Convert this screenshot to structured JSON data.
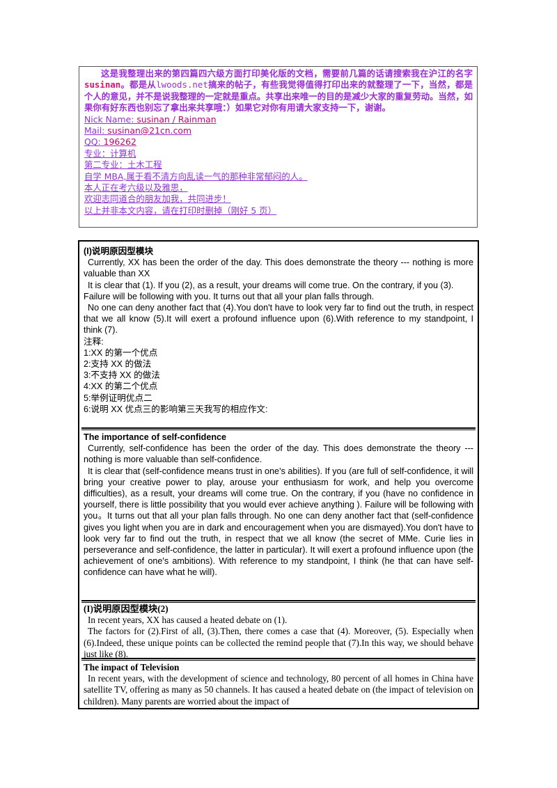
{
  "intro": {
    "para_part1": "这是我整理出来的第四篇四六级方面打印美化版的文档，需要前几篇的话请搜索我在沪江的名字",
    "username": "susinan",
    "para_part2": "。都是从",
    "site": "lwoods.net",
    "para_part3": "搞来的帖子，有些我觉得值得打印出来的就整理了一下，当然，都是个人的意见，并不是说我整理的一定就是重点。共享出来唯一的目的是减少大家的重复劳动。当然，如果你有好东西也别忘了拿出来共享哦：）如果它对你有用请大家支持一下，谢谢。",
    "nick_label": "Nick Name: ",
    "nick_value": "susinan / Rainman",
    "mail_label": "Mail: ",
    "mail_value": "susinan@21cn.com",
    "qq_label": "QQ: ",
    "qq_value": "196262",
    "major": "专业：计算机",
    "second_major": "第二专业：土木工程",
    "mba": "自学 MBA,属于看不清方向乱读一气的那种非常郁闷的人。",
    "exam": "本人正在考六级以及雅思，",
    "welcome": "欢迎志同道合的朋友加我，共同进步！",
    "remove_note": "以上并非本文内容，请在打印时删掉（刚好 5 页）"
  },
  "section1": {
    "heading": "(I)说明原因型模块",
    "p1": "Currently, XX has been the order of the day. This does demonstrate the theory --- nothing is more valuable than XX",
    "p2": "It is clear that (1). If you (2), as a result, your dreams will come true. On the contrary, if you (3).",
    "p3": "Failure will be following with you. It turns out that all your plan falls through.",
    "p4": "No one can deny another fact that (4).You don't have to look very far to find out the truth, in respect that we all know (5).It will exert a profound influence upon (6).With reference to my standpoint, I think (7).",
    "notes_label": "注释:",
    "notes": [
      "1:XX 的第一个优点",
      "2:支持 XX 的做法",
      "3:不支持 XX 的做法",
      "4:XX 的第二个优点",
      "5:举例证明优点二",
      "6:说明 XX 优点三的影响第三天我写的相应作文:"
    ]
  },
  "section2": {
    "heading": "The importance of self-confidence",
    "p1": "Currently, self-confidence has been the order of the day. This does demonstrate the  theory --- nothing is more valuable than self-confidence.",
    "p2": "It is clear that (self-confidence means trust in one's abilities). If you (are full of self-confidence, it will bring your creative power to play, arouse your enthusiasm for work, and help you overcome difficulties), as a result, your dreams will come true. On the contrary, if you (have no confidence in yourself, there is little possibility that you would ever achieve anything ). Failure will be following with you。It turns out that all your plan falls through. No one can deny another fact that (self-confidence gives you light when you are in dark and encouragement when you are dismayed).You don't have to look very far to find out the truth, in respect that we all know (the secret of MMe. Curie lies in perseverance and self-confidence, the latter in particular). It will exert a profound influence upon (the achievement of one's ambitions). With reference to my standpoint, I think (he that can have self-confidence can have what he will)."
  },
  "section3": {
    "heading": "(I)说明原因型模块(2)",
    "p1": "In recent years, XX has caused a heated debate on (1).",
    "p2": "The factors for (2).First of all, (3).Then, there comes a case that (4). Moreover, (5). Especially when (6).Indeed, these unique points can be collected the remind people that (7).In this way, we should behave just like (8)."
  },
  "section4": {
    "heading": "The impact of Television",
    "p1": "In recent years, with the development of science and technology, 80 percent of all homes in China have satellite TV, offering as many as 50 channels. It has caused a heated debate on (the impact of television on children). Many parents are worried about the impact of"
  }
}
